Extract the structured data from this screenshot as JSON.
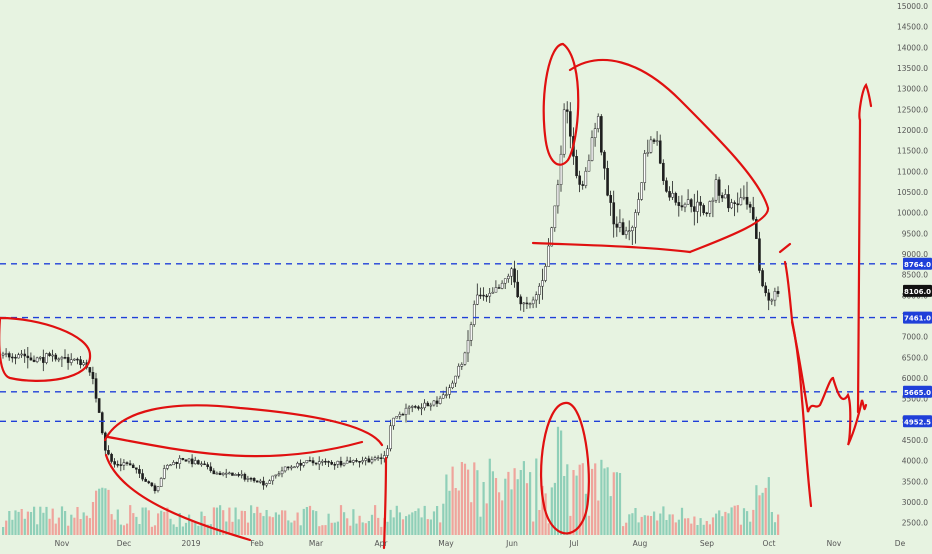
{
  "colors": {
    "background": "#e7f3e1",
    "candle": "#1f1f1f",
    "level_line": "#1f3fd9",
    "level_label_bg": "#1f3fd9",
    "price_label_bg": "#111111",
    "drawing": "#e01010",
    "volume_up": "#7fc8b0",
    "volume_down": "#f0958f",
    "axis_text": "#555555"
  },
  "chart_data": {
    "type": "candlestick",
    "x_axis": {
      "ticks": [
        "Nov",
        "Dec",
        "2019",
        "Feb",
        "Mar",
        "Apr",
        "May",
        "Jun",
        "Jul",
        "Aug",
        "Sep",
        "Oct",
        "Nov",
        "De"
      ]
    },
    "y_axis": {
      "ticks": [
        "2500.0",
        "3000.0",
        "3500.0",
        "4000.0",
        "4500.0",
        "5000.0",
        "5500.0",
        "6000.0",
        "6500.0",
        "7000.0",
        "7500.0",
        "8000.0",
        "8500.0",
        "9000.0",
        "9500.0",
        "10000.0",
        "10500.0",
        "11000.0",
        "11500.0",
        "12000.0",
        "12500.0",
        "13000.0",
        "13500.0",
        "14000.0",
        "14500.0",
        "15000.0"
      ],
      "range": [
        2200,
        15050
      ]
    },
    "levels": [
      {
        "value": 8764.0,
        "label": "8764.0"
      },
      {
        "value": 7461.0,
        "label": "7461.0"
      },
      {
        "value": 5665.0,
        "label": "5665.0"
      },
      {
        "value": 4952.5,
        "label": "4952.5"
      }
    ],
    "current_price": {
      "value": 8106.0,
      "label": "8106.0"
    },
    "monthly_path": [
      {
        "month": "Oct 2018",
        "price": 6500
      },
      {
        "month": "early Nov 2018",
        "price": 6400
      },
      {
        "month": "mid Nov 2018",
        "price": 5600
      },
      {
        "month": "late Nov 2018",
        "price": 4300
      },
      {
        "month": "Dec 2018",
        "price": 3300
      },
      {
        "month": "2019",
        "price": 3900
      },
      {
        "month": "Feb 2019",
        "price": 3500
      },
      {
        "month": "Mar 2019",
        "price": 3950
      },
      {
        "month": "Apr 2019",
        "price": 5200
      },
      {
        "month": "May 2019",
        "price": 7500
      },
      {
        "month": "Jun 2019",
        "price": 9500
      },
      {
        "month": "Jul 2019",
        "price": 11500
      },
      {
        "month": "Aug 2019",
        "price": 11000
      },
      {
        "month": "Sep 2019",
        "price": 9800
      },
      {
        "month": "Oct 2019",
        "price": 8106
      }
    ]
  }
}
